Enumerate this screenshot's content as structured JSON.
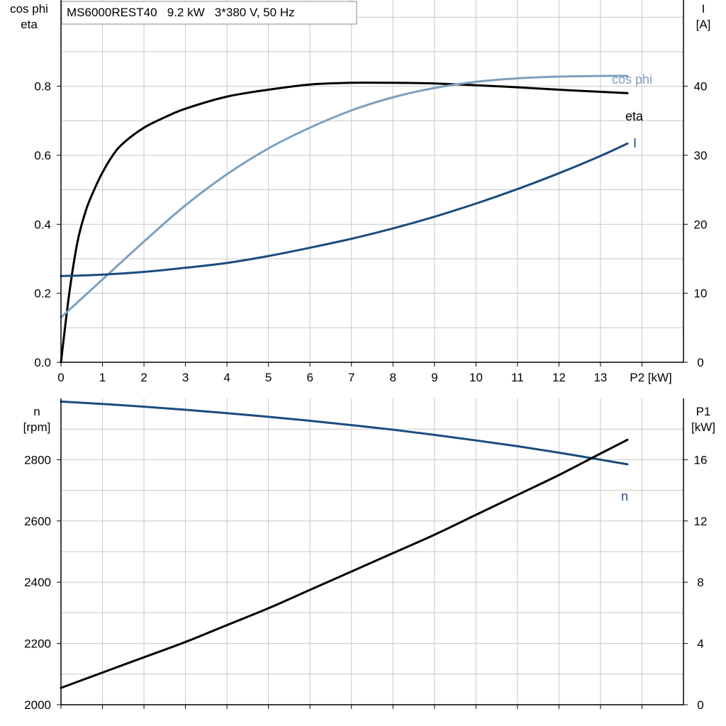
{
  "title": "MS6000REST40   9.2 kW   3*380 V, 50 Hz",
  "colors": {
    "grid": "#c8c8c8",
    "eta": "#000000",
    "cosphi": "#7e9fbe",
    "current": "#1a4c7e",
    "speed": "#1a4c7e",
    "p1": "#000000"
  },
  "chart_data": [
    {
      "type": "line",
      "xlabel": "P2 [kW]",
      "ylabel_left": "cos phi\neta",
      "ylabel_right": "I\n[A]",
      "xlim": [
        0,
        15
      ],
      "ylim_left": [
        0,
        1.05
      ],
      "ylim_right": [
        0,
        52.5
      ],
      "xticks": [
        "0",
        "1",
        "2",
        "3",
        "4",
        "5",
        "6",
        "7",
        "8",
        "9",
        "10",
        "11",
        "12",
        "13"
      ],
      "yticks_left": [
        "0.0",
        "0.2",
        "0.4",
        "0.6",
        "0.8"
      ],
      "yticks_right": [
        "0",
        "10",
        "20",
        "30",
        "40"
      ],
      "grid": true,
      "series": [
        {
          "name": "eta",
          "axis": "left",
          "x": [
            0,
            0.2,
            0.4,
            0.6,
            0.8,
            1.0,
            1.25,
            1.5,
            2,
            2.5,
            3,
            4,
            5,
            6,
            7,
            8,
            9,
            10,
            11,
            12,
            13,
            13.65
          ],
          "y": [
            0.0,
            0.2,
            0.35,
            0.44,
            0.5,
            0.55,
            0.6,
            0.635,
            0.68,
            0.71,
            0.735,
            0.77,
            0.79,
            0.805,
            0.81,
            0.81,
            0.808,
            0.803,
            0.797,
            0.79,
            0.784,
            0.78
          ]
        },
        {
          "name": "cos phi",
          "axis": "left",
          "x": [
            0,
            1,
            2,
            3,
            4,
            5,
            6,
            7,
            8,
            9,
            10,
            11,
            12,
            13,
            13.65
          ],
          "y": [
            0.13,
            0.24,
            0.35,
            0.455,
            0.545,
            0.62,
            0.68,
            0.73,
            0.768,
            0.795,
            0.813,
            0.823,
            0.828,
            0.83,
            0.83
          ]
        },
        {
          "name": "I",
          "axis": "right",
          "x": [
            0,
            1,
            2,
            3,
            4,
            5,
            6,
            7,
            8,
            9,
            10,
            11,
            12,
            13,
            13.65
          ],
          "y": [
            12.5,
            12.7,
            13.1,
            13.7,
            14.4,
            15.4,
            16.6,
            17.9,
            19.4,
            21.1,
            23.0,
            25.1,
            27.4,
            29.9,
            31.7
          ]
        }
      ]
    },
    {
      "type": "line",
      "xlabel": "",
      "ylabel_left": "n\n[rpm]",
      "ylabel_right": "P1\n[kW]",
      "xlim": [
        0,
        15
      ],
      "ylim_left": [
        2000,
        3000
      ],
      "ylim_right": [
        0,
        20
      ],
      "xticks": [],
      "yticks_left": [
        "2000",
        "2200",
        "2400",
        "2600",
        "2800"
      ],
      "yticks_right": [
        "0",
        "4",
        "8",
        "12",
        "16"
      ],
      "grid": true,
      "series": [
        {
          "name": "n",
          "axis": "left",
          "x": [
            0,
            1,
            2,
            3,
            4,
            5,
            6,
            7,
            8,
            9,
            10,
            11,
            12,
            13,
            13.65
          ],
          "y": [
            2990,
            2982,
            2973,
            2963,
            2952,
            2940,
            2927,
            2913,
            2898,
            2881,
            2863,
            2844,
            2823,
            2800,
            2785
          ]
        },
        {
          "name": "",
          "axis": "right",
          "x": [
            0,
            1,
            2,
            3,
            4,
            5,
            6,
            7,
            8,
            9,
            10,
            11,
            12,
            13,
            13.65
          ],
          "y": [
            1.1,
            2.1,
            3.1,
            4.1,
            5.2,
            6.3,
            7.5,
            8.7,
            9.9,
            11.1,
            12.4,
            13.7,
            15.0,
            16.4,
            17.3
          ]
        }
      ]
    }
  ],
  "curve_labels": {
    "eta": "eta",
    "cosphi": "cos phi",
    "current": "I",
    "speed": "n"
  }
}
